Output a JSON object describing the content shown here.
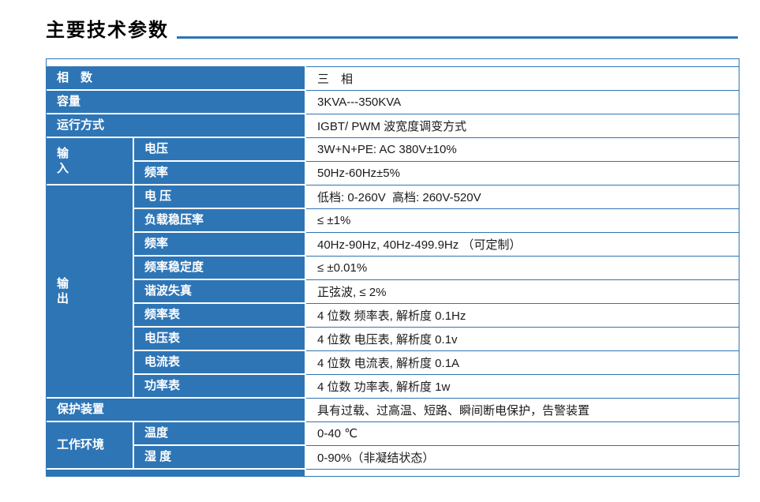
{
  "title": "主要技术参数",
  "colors": {
    "header_blue": "#2e75b6",
    "row_line_blue": "#2e75b6",
    "title_underline": "#2e75b6",
    "header_text": "#ffffff",
    "value_text": "#1a1a1a"
  },
  "table": {
    "phase": {
      "label": "相　数",
      "value": "三　相"
    },
    "capacity": {
      "label": "容量",
      "value": "3KVA---350KVA"
    },
    "operation": {
      "label": "运行方式",
      "value": "IGBT/ PWM 波宽度调变方式"
    },
    "input": {
      "label": "输\n入",
      "rows": [
        {
          "label": "电压",
          "value": "3W+N+PE: AC 380V±10%"
        },
        {
          "label": "频率",
          "value": "50Hz-60Hz±5%"
        }
      ]
    },
    "output": {
      "label": "输\n出",
      "rows": [
        {
          "label": "电 压",
          "value": "低档: 0-260V  高档: 260V-520V"
        },
        {
          "label": "负载稳压率",
          "value": "≤ ±1%"
        },
        {
          "label": "频率",
          "value": "40Hz-90Hz, 40Hz-499.9Hz （可定制）"
        },
        {
          "label": "频率稳定度",
          "value": "≤ ±0.01%"
        },
        {
          "label": "谐波失真",
          "value": "正弦波, ≤ 2%"
        },
        {
          "label": "频率表",
          "value": "4 位数 频率表, 解析度 0.1Hz"
        },
        {
          "label": "电压表",
          "value": "4 位数 电压表, 解析度 0.1v"
        },
        {
          "label": "电流表",
          "value": "4 位数 电流表, 解析度 0.1A"
        },
        {
          "label": "功率表",
          "value": "4 位数 功率表, 解析度 1w"
        }
      ]
    },
    "protection": {
      "label": "保护装置",
      "value": "具有过载、过高温、短路、瞬间断电保护，告警装置"
    },
    "environment": {
      "label": "工作环境",
      "rows": [
        {
          "label": "温度",
          "value": "0-40 ℃"
        },
        {
          "label": "湿 度",
          "value": "0-90%（非凝结状态）"
        }
      ]
    }
  }
}
